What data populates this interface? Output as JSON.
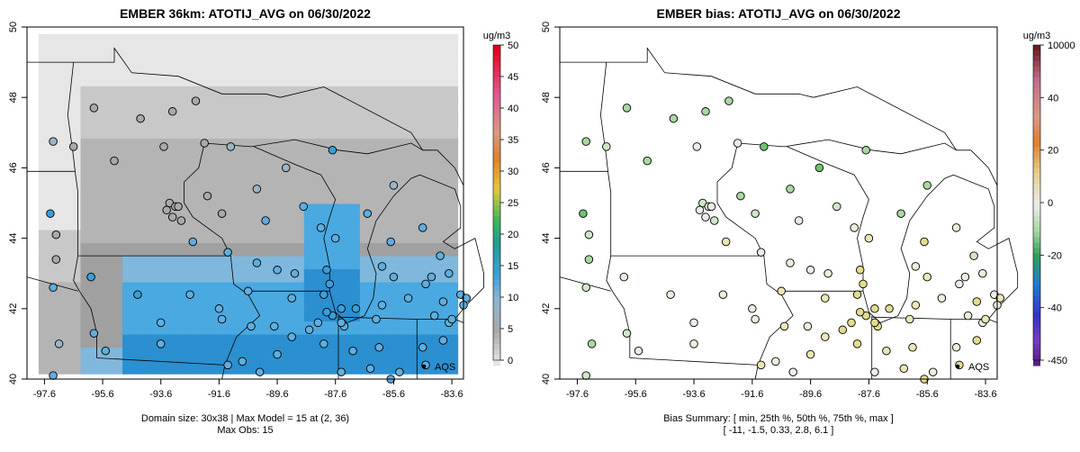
{
  "left_panel": {
    "title": "EMBER 36km: ATOTIJ_AVG on 06/30/2022",
    "x_ticks": [
      "-97.6",
      "-95.6",
      "-93.6",
      "-91.6",
      "-89.6",
      "-87.6",
      "-85.6",
      "-83.6"
    ],
    "y_ticks": [
      "40",
      "42",
      "44",
      "46",
      "48",
      "50"
    ],
    "colorbar_unit": "ug/m3",
    "colorbar_ticks": [
      "0",
      "5",
      "10",
      "15",
      "20",
      "25",
      "30",
      "35",
      "40",
      "45",
      "50"
    ],
    "legend_label": "AQS",
    "footer_line1": "Domain size: 30x38 | Max Model = 15 at (2, 36)",
    "footer_line2": "Max Obs: 15"
  },
  "right_panel": {
    "title": "EMBER bias: ATOTIJ_AVG on 06/30/2022",
    "x_ticks": [
      "-97.6",
      "-95.6",
      "-93.6",
      "-91.6",
      "-89.6",
      "-87.6",
      "-85.6",
      "-83.6"
    ],
    "y_ticks": [
      "40",
      "42",
      "44",
      "46",
      "48",
      "50"
    ],
    "colorbar_unit": "ug/m3",
    "colorbar_ticks": [
      "10000",
      "40",
      "20",
      "0",
      "-20",
      "-40",
      "-450"
    ],
    "legend_label": "AQS",
    "footer_line1": "Bias Summary: [ min, 25th %, 50th %, 75th %, max ]",
    "footer_line2": "[ -11,   -1.5,   0.33,   2.8,   6.1 ]"
  },
  "colors": {
    "gray_light": "#e6e6e6",
    "gray_mid": "#c8c8c8",
    "gray_dark": "#a0a0a0",
    "blue_concentration": "#4aa9e0",
    "blue_dark": "#2b8fd0",
    "bias_pos": "#e8e08a",
    "bias_neg": "#9fd69a",
    "bias_zero": "#e8e8e8"
  },
  "sites": [
    {
      "lon": -97.3,
      "lat": 46.75,
      "val": 6,
      "bias": -3
    },
    {
      "lon": -96.6,
      "lat": 46.6,
      "val": 5,
      "bias": -1
    },
    {
      "lon": -95.9,
      "lat": 47.7,
      "val": 4,
      "bias": -2
    },
    {
      "lon": -94.3,
      "lat": 47.4,
      "val": 5,
      "bias": -2
    },
    {
      "lon": -93.2,
      "lat": 47.6,
      "val": 5,
      "bias": -3
    },
    {
      "lon": -92.4,
      "lat": 47.9,
      "val": 4,
      "bias": -2
    },
    {
      "lon": -95.2,
      "lat": 46.2,
      "val": 5,
      "bias": -2
    },
    {
      "lon": -93.5,
      "lat": 46.6,
      "val": 5,
      "bias": 0
    },
    {
      "lon": -92.1,
      "lat": 46.7,
      "val": 5,
      "bias": 0
    },
    {
      "lon": -91.2,
      "lat": 46.6,
      "val": 6,
      "bias": -4
    },
    {
      "lon": -89.3,
      "lat": 46.0,
      "val": 6,
      "bias": -4
    },
    {
      "lon": -87.7,
      "lat": 46.5,
      "val": 11,
      "bias": -3
    },
    {
      "lon": -97.4,
      "lat": 44.7,
      "val": 11,
      "bias": -6
    },
    {
      "lon": -97.2,
      "lat": 44.1,
      "val": 5,
      "bias": -1
    },
    {
      "lon": -97.2,
      "lat": 43.4,
      "val": 5,
      "bias": -3
    },
    {
      "lon": -97.3,
      "lat": 42.6,
      "val": 9,
      "bias": -1
    },
    {
      "lon": -93.3,
      "lat": 45.0,
      "val": 5,
      "bias": -1
    },
    {
      "lon": -93.1,
      "lat": 44.9,
      "val": 5,
      "bias": -1
    },
    {
      "lon": -93.4,
      "lat": 44.8,
      "val": 5,
      "bias": 0
    },
    {
      "lon": -93.2,
      "lat": 44.6,
      "val": 5,
      "bias": 0
    },
    {
      "lon": -92.9,
      "lat": 44.5,
      "val": 5,
      "bias": -1
    },
    {
      "lon": -93.0,
      "lat": 44.9,
      "val": 5,
      "bias": 0
    },
    {
      "lon": -92.0,
      "lat": 45.2,
      "val": 5,
      "bias": -2
    },
    {
      "lon": -91.5,
      "lat": 44.7,
      "val": 5,
      "bias": -1
    },
    {
      "lon": -90.0,
      "lat": 44.5,
      "val": 10,
      "bias": 0
    },
    {
      "lon": -90.3,
      "lat": 45.4,
      "val": 7,
      "bias": -3
    },
    {
      "lon": -88.7,
      "lat": 44.9,
      "val": 10,
      "bias": -1
    },
    {
      "lon": -92.5,
      "lat": 43.9,
      "val": 10,
      "bias": 2
    },
    {
      "lon": -91.3,
      "lat": 43.6,
      "val": 10,
      "bias": 0
    },
    {
      "lon": -90.3,
      "lat": 43.3,
      "val": 10,
      "bias": 1
    },
    {
      "lon": -89.6,
      "lat": 43.1,
      "val": 10,
      "bias": 0
    },
    {
      "lon": -89.0,
      "lat": 43.0,
      "val": 10,
      "bias": 1
    },
    {
      "lon": -87.9,
      "lat": 43.1,
      "val": 11,
      "bias": 3
    },
    {
      "lon": -87.8,
      "lat": 42.7,
      "val": 11,
      "bias": 3
    },
    {
      "lon": -88.1,
      "lat": 44.3,
      "val": 10,
      "bias": 1
    },
    {
      "lon": -87.6,
      "lat": 44.0,
      "val": 10,
      "bias": 2
    },
    {
      "lon": -86.5,
      "lat": 44.7,
      "val": 10,
      "bias": -3
    },
    {
      "lon": -86.0,
      "lat": 43.2,
      "val": 10,
      "bias": 1
    },
    {
      "lon": -85.6,
      "lat": 42.9,
      "val": 10,
      "bias": 2
    },
    {
      "lon": -84.5,
      "lat": 42.7,
      "val": 9,
      "bias": 0
    },
    {
      "lon": -84.0,
      "lat": 43.5,
      "val": 9,
      "bias": -1
    },
    {
      "lon": -83.7,
      "lat": 43.0,
      "val": 8,
      "bias": 1
    },
    {
      "lon": -83.3,
      "lat": 42.4,
      "val": 9,
      "bias": 0
    },
    {
      "lon": -83.1,
      "lat": 42.3,
      "val": 9,
      "bias": 2
    },
    {
      "lon": -83.2,
      "lat": 42.1,
      "val": 9,
      "bias": 1
    },
    {
      "lon": -85.7,
      "lat": 43.9,
      "val": 9,
      "bias": 4
    },
    {
      "lon": -84.6,
      "lat": 44.3,
      "val": 9,
      "bias": 1
    },
    {
      "lon": -85.6,
      "lat": 45.5,
      "val": 7,
      "bias": -3
    },
    {
      "lon": -87.4,
      "lat": 42.0,
      "val": 11,
      "bias": 3
    },
    {
      "lon": -87.7,
      "lat": 41.8,
      "val": 11,
      "bias": 4
    },
    {
      "lon": -87.9,
      "lat": 41.9,
      "val": 11,
      "bias": 4
    },
    {
      "lon": -88.2,
      "lat": 41.6,
      "val": 10,
      "bias": 3
    },
    {
      "lon": -88.5,
      "lat": 41.4,
      "val": 10,
      "bias": 3
    },
    {
      "lon": -89.1,
      "lat": 41.2,
      "val": 10,
      "bias": 2
    },
    {
      "lon": -89.7,
      "lat": 41.5,
      "val": 10,
      "bias": 1
    },
    {
      "lon": -90.5,
      "lat": 41.5,
      "val": 10,
      "bias": 2
    },
    {
      "lon": -91.5,
      "lat": 41.7,
      "val": 10,
      "bias": 1
    },
    {
      "lon": -93.6,
      "lat": 41.6,
      "val": 10,
      "bias": 0
    },
    {
      "lon": -95.9,
      "lat": 41.3,
      "val": 9,
      "bias": -1
    },
    {
      "lon": -96.0,
      "lat": 42.9,
      "val": 11,
      "bias": 1
    },
    {
      "lon": -94.4,
      "lat": 42.4,
      "val": 11,
      "bias": 1
    },
    {
      "lon": -92.6,
      "lat": 42.4,
      "val": 10,
      "bias": 1
    },
    {
      "lon": -91.6,
      "lat": 42.0,
      "val": 10,
      "bias": 1
    },
    {
      "lon": -90.6,
      "lat": 42.5,
      "val": 10,
      "bias": 2
    },
    {
      "lon": -89.1,
      "lat": 42.3,
      "val": 10,
      "bias": 2
    },
    {
      "lon": -88.0,
      "lat": 42.4,
      "val": 11,
      "bias": 4
    },
    {
      "lon": -86.9,
      "lat": 42.0,
      "val": 11,
      "bias": 3
    },
    {
      "lon": -86.0,
      "lat": 42.1,
      "val": 10,
      "bias": 2
    },
    {
      "lon": -85.1,
      "lat": 42.3,
      "val": 10,
      "bias": 1
    },
    {
      "lon": -84.2,
      "lat": 41.8,
      "val": 9,
      "bias": 1
    },
    {
      "lon": -83.7,
      "lat": 41.6,
      "val": 9,
      "bias": 0
    },
    {
      "lon": -86.2,
      "lat": 41.7,
      "val": 10,
      "bias": 2
    },
    {
      "lon": -87.3,
      "lat": 41.5,
      "val": 10,
      "bias": 3
    },
    {
      "lon": -87.4,
      "lat": 41.6,
      "val": 10,
      "bias": 3
    },
    {
      "lon": -88.0,
      "lat": 41.0,
      "val": 10,
      "bias": 3
    },
    {
      "lon": -87.0,
      "lat": 40.8,
      "val": 10,
      "bias": 2
    },
    {
      "lon": -86.1,
      "lat": 40.9,
      "val": 10,
      "bias": 2
    },
    {
      "lon": -85.4,
      "lat": 40.2,
      "val": 10,
      "bias": 1
    },
    {
      "lon": -86.4,
      "lat": 40.3,
      "val": 10,
      "bias": 2
    },
    {
      "lon": -87.4,
      "lat": 40.2,
      "val": 10,
      "bias": 0
    },
    {
      "lon": -89.6,
      "lat": 40.7,
      "val": 10,
      "bias": 2
    },
    {
      "lon": -90.8,
      "lat": 40.5,
      "val": 10,
      "bias": 1
    },
    {
      "lon": -91.3,
      "lat": 40.4,
      "val": 10,
      "bias": 2
    },
    {
      "lon": -90.2,
      "lat": 40.2,
      "val": 10,
      "bias": 0
    },
    {
      "lon": -93.6,
      "lat": 41.0,
      "val": 10,
      "bias": 1
    },
    {
      "lon": -95.5,
      "lat": 40.8,
      "val": 10,
      "bias": 1
    },
    {
      "lon": -97.3,
      "lat": 40.1,
      "val": 9,
      "bias": -1
    },
    {
      "lon": -97.1,
      "lat": 41.0,
      "val": 7,
      "bias": -2
    },
    {
      "lon": -84.5,
      "lat": 40.4,
      "val": 9,
      "bias": 4
    },
    {
      "lon": -84.6,
      "lat": 40.9,
      "val": 9,
      "bias": 1
    },
    {
      "lon": -85.7,
      "lat": 40.0,
      "val": 9,
      "bias": 3
    },
    {
      "lon": -83.9,
      "lat": 42.2,
      "val": 9,
      "bias": 3
    },
    {
      "lon": -83.6,
      "lat": 41.7,
      "val": 10,
      "bias": 2
    },
    {
      "lon": -83.9,
      "lat": 41.1,
      "val": 9,
      "bias": 4
    },
    {
      "lon": -84.3,
      "lat": 42.9,
      "val": 10,
      "bias": 1
    }
  ]
}
